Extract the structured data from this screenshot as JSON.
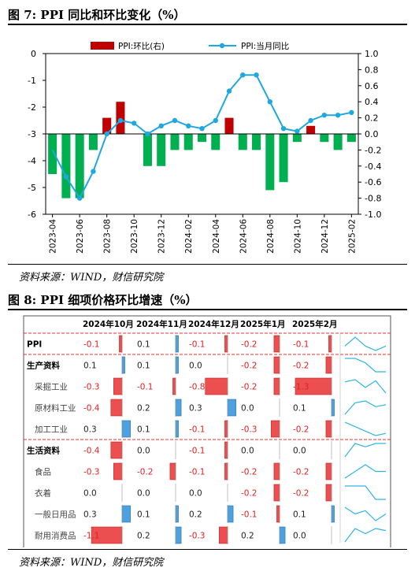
{
  "fig7": {
    "title": "图 7:  PPI 同比和环比变化（%）",
    "source": "资料来源：WIND，财信研究院"
  },
  "fig8": {
    "title": "图 8:  PPI 细项价格环比增速（%）",
    "source": "资料来源：WIND，财信研究院"
  },
  "chart_data": [
    {
      "type": "bar+line",
      "categories": [
        "2023-04",
        "2023-05",
        "2023-06",
        "2023-07",
        "2023-08",
        "2023-09",
        "2023-10",
        "2023-11",
        "2023-12",
        "2024-01",
        "2024-02",
        "2024-03",
        "2024-04",
        "2024-05",
        "2024-06",
        "2024-07",
        "2024-08",
        "2024-09",
        "2024-10",
        "2024-11",
        "2024-12",
        "2025-01",
        "2025-02"
      ],
      "x_tick_labels": [
        "2023-04",
        "2023-06",
        "2023-08",
        "2023-10",
        "2023-12",
        "2024-02",
        "2024-04",
        "2024-06",
        "2024-08",
        "2024-10",
        "2024-12",
        "2025-02"
      ],
      "series": [
        {
          "name": "PPI:环比(右)",
          "axis": "right",
          "kind": "bar",
          "values": [
            -0.5,
            -0.8,
            -0.8,
            -0.2,
            0.2,
            0.4,
            0.0,
            -0.4,
            -0.4,
            -0.2,
            -0.2,
            -0.1,
            -0.2,
            0.2,
            -0.2,
            -0.2,
            -0.7,
            -0.6,
            -0.1,
            0.1,
            -0.1,
            -0.2,
            -0.1
          ]
        },
        {
          "name": "PPI:当月同比",
          "axis": "left",
          "kind": "line",
          "values": [
            -3.6,
            -4.6,
            -5.4,
            -4.4,
            -3.0,
            -2.5,
            -2.6,
            -3.0,
            -2.7,
            -2.5,
            -2.7,
            -2.8,
            -2.5,
            -1.4,
            -0.8,
            -0.8,
            -1.8,
            -2.8,
            -2.9,
            -2.5,
            -2.3,
            -2.3,
            -2.2
          ]
        }
      ],
      "y_left": {
        "min": -6,
        "max": 0,
        "ticks": [
          "0",
          "-1",
          "-2",
          "-3",
          "-4",
          "-5",
          "-6"
        ]
      },
      "y_right": {
        "min": -1.0,
        "max": 1.0,
        "ticks": [
          "1.0",
          "0.8",
          "0.6",
          "0.4",
          "0.2",
          "0.0",
          "-0.2",
          "-0.4",
          "-0.6",
          "-0.8",
          "-1.0"
        ]
      },
      "legend_position": "top",
      "colors": {
        "bar_up": "#c00000",
        "bar_down": "#00b050",
        "line": "#1fa8e0"
      }
    },
    {
      "type": "table",
      "columns": [
        "2024年10月",
        "2024年11月",
        "2024年12月",
        "2025年1月",
        "2025年2月"
      ],
      "rows": [
        {
          "label": "PPI",
          "level": 0,
          "values": [
            -0.1,
            0.1,
            -0.1,
            -0.2,
            -0.1
          ]
        },
        {
          "label": "生产资料",
          "level": 0,
          "values": [
            0.1,
            0.1,
            0.0,
            -0.2,
            -0.2
          ]
        },
        {
          "label": "采掘工业",
          "level": 1,
          "values": [
            -0.3,
            -0.1,
            -0.8,
            -0.2,
            -1.3
          ]
        },
        {
          "label": "原材料工业",
          "level": 1,
          "values": [
            -0.4,
            0.2,
            0.3,
            0.0,
            0.1
          ]
        },
        {
          "label": "加工工业",
          "level": 1,
          "values": [
            0.3,
            0.1,
            -0.1,
            -0.3,
            -0.2
          ]
        },
        {
          "label": "生活资料",
          "level": 0,
          "values": [
            -0.4,
            0.0,
            -0.1,
            0.0,
            0.0
          ]
        },
        {
          "label": "食品",
          "level": 1,
          "values": [
            -0.3,
            -0.2,
            -0.1,
            -0.2,
            -0.2
          ]
        },
        {
          "label": "衣着",
          "level": 1,
          "values": [
            0.0,
            0.0,
            0.0,
            -0.2,
            -0.2
          ]
        },
        {
          "label": "一般日用品",
          "level": 1,
          "values": [
            0.3,
            0.1,
            0.2,
            -0.1,
            0.1
          ]
        },
        {
          "label": "耐用消费品",
          "level": 1,
          "values": [
            -1.1,
            0.2,
            -0.3,
            0.2,
            0.0
          ]
        }
      ],
      "colors": {
        "negative": "#e83030",
        "positive": "#2f8fd8",
        "sparkline": "#2fb3e6"
      }
    }
  ]
}
